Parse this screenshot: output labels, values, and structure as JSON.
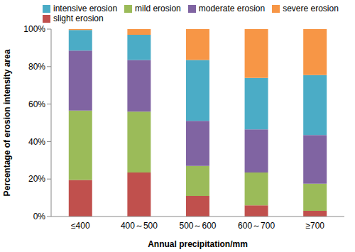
{
  "chart_data": {
    "type": "bar",
    "stacked": true,
    "x_label": "Annual precipitation/mm",
    "y_label": "Percentage of erosion intensity area",
    "categories": [
      "≤400",
      "400～500",
      "500～600",
      "600～700",
      "≥700"
    ],
    "series": [
      {
        "name": "slight erosion",
        "color": "#C0504D",
        "values": [
          19.5,
          23.5,
          11,
          6,
          3
        ]
      },
      {
        "name": "mild erosion",
        "color": "#9BBB59",
        "values": [
          37,
          32.5,
          16,
          17.5,
          14.5
        ]
      },
      {
        "name": "moderate erosion",
        "color": "#8064A2",
        "values": [
          32,
          27.5,
          24,
          23,
          26
        ]
      },
      {
        "name": "intensive erosion",
        "color": "#4BACC6",
        "values": [
          11,
          13.5,
          32.5,
          27.5,
          32
        ]
      },
      {
        "name": "severe erosion",
        "color": "#F79646",
        "values": [
          0.5,
          3,
          16.5,
          26,
          24.5
        ]
      }
    ],
    "ylim": [
      0,
      100
    ],
    "yticks": [
      {
        "value": 0,
        "label": "0%"
      },
      {
        "value": 20,
        "label": "20%"
      },
      {
        "value": 40,
        "label": "40%"
      },
      {
        "value": 60,
        "label": "60%"
      },
      {
        "value": 80,
        "label": "80%"
      },
      {
        "value": 100,
        "label": "100%"
      }
    ],
    "grid": false,
    "legend": "top"
  }
}
